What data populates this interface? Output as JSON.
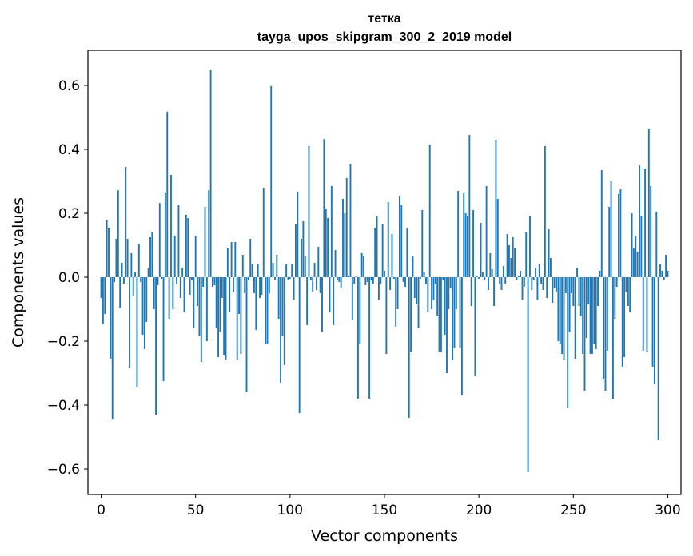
{
  "chart_data": {
    "type": "bar",
    "title": "тетка",
    "subtitle": "tayga_upos_skipgram_300_2_2019 model",
    "xlabel": "Vector components",
    "ylabel": "Components values",
    "xlim": [
      -7,
      307
    ],
    "ylim": [
      -0.68,
      0.71
    ],
    "xticks": [
      0,
      50,
      100,
      150,
      200,
      250,
      300
    ],
    "xtick_labels": [
      "0",
      "50",
      "100",
      "150",
      "200",
      "250",
      "300"
    ],
    "yticks": [
      -0.6,
      -0.4,
      -0.2,
      0.0,
      0.2,
      0.4,
      0.6
    ],
    "ytick_labels": [
      "−0.6",
      "−0.4",
      "−0.2",
      "0.0",
      "0.2",
      "0.4",
      "0.6"
    ],
    "bar_color": "#1f77b4",
    "grid": false,
    "values": [
      -0.065,
      -0.145,
      -0.115,
      0.18,
      0.155,
      -0.255,
      -0.445,
      -0.015,
      0.12,
      0.272,
      -0.095,
      0.045,
      -0.02,
      0.345,
      0.12,
      -0.285,
      0.075,
      -0.06,
      0.015,
      -0.345,
      0.105,
      -0.015,
      -0.18,
      -0.225,
      -0.14,
      0.03,
      0.125,
      0.14,
      -0.1,
      -0.43,
      -0.025,
      0.232,
      -0.005,
      -0.325,
      0.265,
      0.518,
      -0.13,
      0.32,
      -0.1,
      0.13,
      -0.02,
      0.225,
      -0.065,
      0.03,
      -0.11,
      0.195,
      0.185,
      -0.055,
      -0.01,
      -0.16,
      0.13,
      -0.09,
      -0.185,
      -0.265,
      -0.03,
      0.22,
      -0.2,
      0.272,
      0.648,
      -0.03,
      -0.025,
      -0.16,
      -0.25,
      -0.17,
      -0.065,
      -0.245,
      -0.26,
      0.09,
      -0.11,
      0.11,
      -0.045,
      0.11,
      -0.26,
      -0.115,
      -0.24,
      0.07,
      -0.05,
      -0.36,
      -0.01,
      0.12,
      0.04,
      -0.05,
      -0.165,
      0.04,
      -0.065,
      -0.055,
      0.28,
      -0.21,
      -0.21,
      -0.05,
      0.598,
      0.045,
      -0.01,
      0.07,
      -0.13,
      -0.33,
      -0.185,
      -0.275,
      0.04,
      -0.01,
      -0.005,
      0.04,
      -0.07,
      0.165,
      0.268,
      -0.425,
      0.12,
      0.175,
      0.065,
      -0.15,
      0.41,
      -0.01,
      -0.045,
      0.045,
      -0.04,
      0.095,
      -0.05,
      -0.17,
      0.432,
      0.215,
      0.185,
      -0.11,
      0.285,
      -0.15,
      0.085,
      -0.01,
      -0.015,
      -0.035,
      0.245,
      0.2,
      0.31,
      0.005,
      0.355,
      -0.135,
      -0.02,
      0.005,
      -0.38,
      -0.21,
      0.075,
      0.065,
      -0.025,
      -0.015,
      -0.38,
      -0.01,
      -0.02,
      0.155,
      0.19,
      -0.07,
      -0.02,
      0.165,
      0.02,
      -0.24,
      0.235,
      -0.04,
      0.135,
      -0.005,
      -0.155,
      -0.1,
      0.255,
      0.225,
      -0.015,
      -0.03,
      0.155,
      -0.44,
      -0.235,
      0.065,
      -0.065,
      -0.085,
      -0.16,
      -0.005,
      0.21,
      0.015,
      -0.02,
      -0.11,
      0.415,
      -0.1,
      -0.07,
      -0.02,
      -0.12,
      -0.235,
      -0.235,
      -0.01,
      -0.18,
      -0.3,
      -0.1,
      -0.035,
      -0.26,
      -0.22,
      -0.1,
      0.27,
      -0.22,
      -0.37,
      0.265,
      0.2,
      0.19,
      0.445,
      -0.09,
      0.21,
      -0.31,
      0.005,
      -0.005,
      0.17,
      0.015,
      -0.01,
      0.285,
      -0.04,
      0.075,
      0.025,
      -0.09,
      0.43,
      0.245,
      -0.02,
      -0.04,
      0.035,
      -0.02,
      0.135,
      0.1,
      0.06,
      0.125,
      0.09,
      -0.01,
      0.005,
      0.02,
      -0.07,
      -0.03,
      0.14,
      -0.61,
      0.19,
      -0.04,
      -0.01,
      0.03,
      -0.07,
      0.04,
      -0.02,
      -0.04,
      0.41,
      -0.065,
      0.15,
      0.06,
      -0.08,
      -0.035,
      -0.045,
      -0.2,
      -0.21,
      -0.24,
      -0.26,
      -0.05,
      -0.41,
      -0.17,
      -0.05,
      -0.09,
      -0.255,
      0.03,
      -0.09,
      -0.12,
      -0.24,
      -0.355,
      -0.19,
      -0.085,
      -0.24,
      -0.24,
      -0.21,
      -0.225,
      -0.09,
      0.02,
      0.335,
      -0.32,
      -0.355,
      -0.23,
      0.22,
      0.3,
      -0.38,
      -0.13,
      -0.03,
      0.26,
      0.275,
      -0.28,
      -0.25,
      -0.045,
      -0.09,
      -0.11,
      0.2,
      0.09,
      0.13,
      0.08,
      0.35,
      0.19,
      -0.23,
      0.34,
      -0.235,
      0.465,
      0.285,
      -0.28,
      -0.335,
      0.205,
      -0.51,
      0.04,
      0.02,
      -0.01,
      0.07,
      0.02
    ]
  }
}
